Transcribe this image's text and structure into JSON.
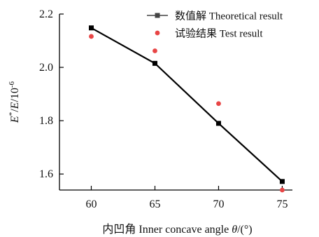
{
  "chart_data": {
    "type": "line",
    "xlabel_prefix": "内凹角 Inner concave angle ",
    "xlabel_symbol": "θ",
    "xlabel_suffix": "/(°)",
    "ylabel_base": "E",
    "ylabel_sup": "*",
    "ylabel_mid": "/",
    "ylabel_base2": "E",
    "ylabel_tail": "/10",
    "ylabel_exp": "-6",
    "xlim": [
      57.5,
      75.8
    ],
    "ylim": [
      1.54,
      2.2
    ],
    "xticks": [
      60,
      65,
      70,
      75
    ],
    "yticks": [
      1.6,
      1.8,
      2.0,
      2.2
    ],
    "xtick_labels": [
      "60",
      "65",
      "70",
      "75"
    ],
    "ytick_labels": [
      "1.6",
      "1.8",
      "2.0",
      "2.2"
    ],
    "series": [
      {
        "name": "数值解 Theoretical result",
        "kind": "line-square",
        "color": "#000000",
        "x": [
          60,
          65,
          70,
          75
        ],
        "y": [
          2.148,
          2.015,
          1.79,
          1.572
        ]
      },
      {
        "name": "试验结果 Test result",
        "kind": "scatter",
        "color": "#e84545",
        "x": [
          60,
          65,
          70,
          75
        ],
        "y": [
          2.116,
          2.062,
          1.864,
          1.54
        ]
      }
    ],
    "legend_position": "top-right"
  }
}
